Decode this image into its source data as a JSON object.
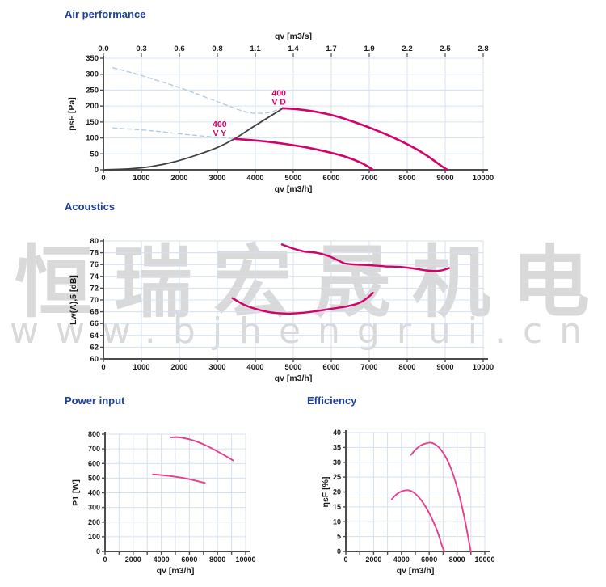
{
  "watermark": {
    "cjk": "恒瑞宏晟机电",
    "latin": "www.bjhengrui.cn",
    "color": "#d9d9d9"
  },
  "colors": {
    "title": "#1e3e9b",
    "magenta": "#d4006b",
    "pink": "#e8肉3e90",
    "curve_small": "#e83e90",
    "dashed": "#b3cbdf",
    "black_curve": "#404040",
    "grid": "#d4e0ef",
    "axis": "#4d4d4d",
    "text": "#1a1a1a"
  },
  "chart_data": [
    {
      "id": "air",
      "type": "line",
      "title": "Air performance",
      "top_axis": {
        "label": "qv [m3/s]",
        "tick_labels": [
          "0.0",
          "0.3",
          "0.6",
          "0.8",
          "1.1",
          "1.4",
          "1.7",
          "1.9",
          "2.2",
          "2.5",
          "2.8"
        ]
      },
      "x_axis": {
        "label": "qv [m3/h]",
        "min": 0,
        "max": 10000,
        "tick_step": 1000,
        "label_step": 1000
      },
      "y_axis": {
        "label": "psF [Pa]",
        "min": 0,
        "max": 350,
        "tick_step": 50
      },
      "series": [
        {
          "name": "guide-dashed-upper",
          "style": "dashed",
          "color_key": "dashed",
          "width": 1.4,
          "points": [
            [
              250,
              320
            ],
            [
              800,
              303
            ],
            [
              1400,
              281
            ],
            [
              2000,
              258
            ],
            [
              2600,
              232
            ],
            [
              3100,
              209
            ],
            [
              3500,
              191
            ],
            [
              3800,
              180
            ],
            [
              4100,
              177
            ],
            [
              4400,
              181
            ],
            [
              4730,
              196
            ]
          ]
        },
        {
          "name": "guide-dashed-lower",
          "style": "dashed",
          "color_key": "dashed",
          "width": 1.4,
          "points": [
            [
              250,
              131
            ],
            [
              800,
              127
            ],
            [
              1400,
              121
            ],
            [
              2000,
              113
            ],
            [
              2600,
              106
            ],
            [
              3000,
              102
            ],
            [
              3250,
              100
            ],
            [
              3450,
              98
            ]
          ]
        },
        {
          "name": "system-curve",
          "style": "solid",
          "color_key": "black_curve",
          "width": 1.8,
          "points": [
            [
              0,
              0
            ],
            [
              700,
              3
            ],
            [
              1300,
              11
            ],
            [
              1900,
              26
            ],
            [
              2500,
              48
            ],
            [
              3000,
              70
            ],
            [
              3450,
              97
            ],
            [
              4000,
              139
            ],
            [
              4730,
              193
            ]
          ]
        },
        {
          "name": "400 VD",
          "style": "solid",
          "color_key": "magenta",
          "width": 2.6,
          "points": [
            [
              4730,
              193
            ],
            [
              5100,
              190
            ],
            [
              5600,
              182
            ],
            [
              6100,
              169
            ],
            [
              6600,
              150
            ],
            [
              7100,
              128
            ],
            [
              7600,
              103
            ],
            [
              8100,
              74
            ],
            [
              8500,
              46
            ],
            [
              8900,
              12
            ],
            [
              9060,
              0
            ]
          ]
        },
        {
          "name": "400 VY",
          "style": "solid",
          "color_key": "magenta",
          "width": 2.6,
          "points": [
            [
              3450,
              97
            ],
            [
              3900,
              93
            ],
            [
              4400,
              87
            ],
            [
              4900,
              79
            ],
            [
              5400,
              69
            ],
            [
              5900,
              56
            ],
            [
              6400,
              40
            ],
            [
              6800,
              21
            ],
            [
              7100,
              0
            ]
          ]
        }
      ],
      "annotations": [
        {
          "lines": [
            "400",
            "V D"
          ],
          "x": 4620,
          "y": 232
        },
        {
          "lines": [
            "400",
            "V Y"
          ],
          "x": 3060,
          "y": 135
        }
      ]
    },
    {
      "id": "acoustics",
      "type": "line",
      "title": "Acoustics",
      "x_axis": {
        "label": "qv [m3/h]",
        "min": 0,
        "max": 10000,
        "tick_step": 1000,
        "label_step": 1000
      },
      "y_axis": {
        "label": "Lw(A),5 [dB]",
        "min": 60,
        "max": 80,
        "tick_step": 2
      },
      "series": [
        {
          "name": "lwa-400-vd",
          "style": "solid",
          "color_key": "magenta",
          "width": 2.4,
          "points": [
            [
              4700,
              79.4
            ],
            [
              5000,
              78.7
            ],
            [
              5300,
              78.2
            ],
            [
              5600,
              78.0
            ],
            [
              5900,
              77.5
            ],
            [
              6150,
              76.8
            ],
            [
              6350,
              76.2
            ],
            [
              6650,
              76.0
            ],
            [
              7000,
              75.9
            ],
            [
              7400,
              75.7
            ],
            [
              7800,
              75.6
            ],
            [
              8200,
              75.3
            ],
            [
              8500,
              75.0
            ],
            [
              8700,
              74.9
            ],
            [
              8900,
              75.0
            ],
            [
              9100,
              75.4
            ]
          ]
        },
        {
          "name": "lwa-400-vy",
          "style": "solid",
          "color_key": "magenta",
          "width": 2.4,
          "points": [
            [
              3400,
              70.3
            ],
            [
              3700,
              69.2
            ],
            [
              4000,
              68.5
            ],
            [
              4400,
              67.9
            ],
            [
              4800,
              67.7
            ],
            [
              5200,
              67.8
            ],
            [
              5600,
              68.1
            ],
            [
              6000,
              68.5
            ],
            [
              6400,
              68.9
            ],
            [
              6700,
              69.4
            ],
            [
              6900,
              70.1
            ],
            [
              7100,
              71.2
            ]
          ]
        }
      ],
      "annotations": []
    },
    {
      "id": "power",
      "type": "line",
      "title": "Power input",
      "x_axis": {
        "label": "qv [m3/h]",
        "min": 0,
        "max": 10000,
        "tick_step": 1000,
        "label_step": 2000
      },
      "y_axis": {
        "label": "P1 [W]",
        "min": 0,
        "max": 800,
        "tick_step": 100
      },
      "series": [
        {
          "name": "p1-400-vd",
          "style": "solid",
          "color_key": "curve_small",
          "width": 1.9,
          "points": [
            [
              4700,
              778
            ],
            [
              5100,
              780
            ],
            [
              5500,
              775
            ],
            [
              6000,
              765
            ],
            [
              6500,
              750
            ],
            [
              7000,
              731
            ],
            [
              7500,
              708
            ],
            [
              8000,
              682
            ],
            [
              8600,
              650
            ],
            [
              9100,
              621
            ]
          ]
        },
        {
          "name": "p1-400-vy",
          "style": "solid",
          "color_key": "curve_small",
          "width": 1.9,
          "points": [
            [
              3400,
              525
            ],
            [
              3900,
              522
            ],
            [
              4400,
              517
            ],
            [
              4900,
              511
            ],
            [
              5400,
              504
            ],
            [
              5900,
              495
            ],
            [
              6400,
              484
            ],
            [
              6900,
              472
            ],
            [
              7100,
              468
            ]
          ]
        }
      ],
      "annotations": []
    },
    {
      "id": "efficiency",
      "type": "line",
      "title": "Efficiency",
      "x_axis": {
        "label": "qv [m3/h]",
        "min": 0,
        "max": 10000,
        "tick_step": 1000,
        "label_step": 2000
      },
      "y_axis": {
        "label": "ηsF [%]",
        "min": 0,
        "max": 40,
        "tick_step": 5
      },
      "series": [
        {
          "name": "eta-400-vd",
          "style": "solid",
          "color_key": "curve_small",
          "width": 1.9,
          "points": [
            [
              4700,
              32.5
            ],
            [
              5000,
              34.2
            ],
            [
              5400,
              35.7
            ],
            [
              5800,
              36.4
            ],
            [
              6100,
              36.6
            ],
            [
              6400,
              36.1
            ],
            [
              6700,
              35.0
            ],
            [
              7000,
              33.2
            ],
            [
              7400,
              29.8
            ],
            [
              7800,
              24.8
            ],
            [
              8200,
              18.2
            ],
            [
              8600,
              9.8
            ],
            [
              8950,
              1.0
            ],
            [
              9020,
              0
            ]
          ]
        },
        {
          "name": "eta-400-vy",
          "style": "solid",
          "color_key": "curve_small",
          "width": 1.9,
          "points": [
            [
              3300,
              17.5
            ],
            [
              3600,
              19.0
            ],
            [
              4000,
              20.2
            ],
            [
              4400,
              20.6
            ],
            [
              4700,
              20.3
            ],
            [
              5000,
              19.4
            ],
            [
              5400,
              17.4
            ],
            [
              5800,
              14.6
            ],
            [
              6200,
              11.0
            ],
            [
              6600,
              6.6
            ],
            [
              6950,
              1.5
            ],
            [
              7100,
              0
            ]
          ]
        }
      ],
      "annotations": []
    }
  ]
}
